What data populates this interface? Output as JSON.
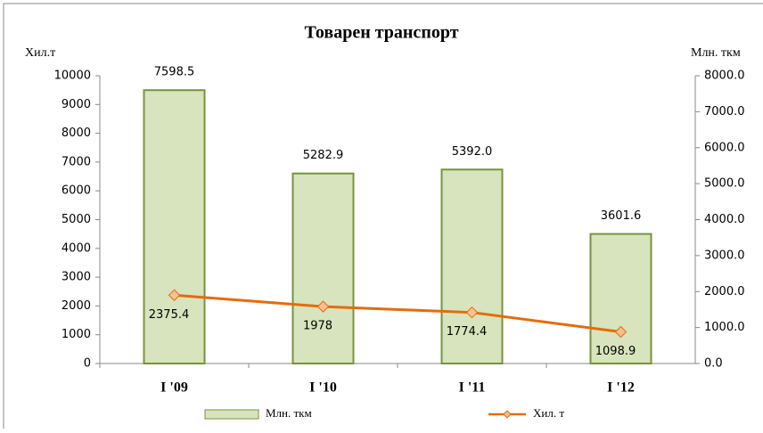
{
  "chart_data": {
    "type": "bar",
    "title": "Товарен транспорт",
    "ylabel": "Хил.т",
    "y2label": "Млн. ткм",
    "categories": [
      "I '09",
      "I '10",
      "I '11",
      "I '12"
    ],
    "series": [
      {
        "name": "Млн. ткм",
        "type": "bar",
        "axis": "y2",
        "color": "#d7e4bd",
        "edgecolor": "#77933c",
        "values": [
          7598.5,
          5282.9,
          5392.0,
          3601.6
        ],
        "value_labels": [
          "7598.5",
          "5282.9",
          "5392.0",
          "3601.6"
        ]
      },
      {
        "name": "Хил. т",
        "type": "line",
        "color": "#e46c0a",
        "markercolor": "#fac090",
        "values": [
          2375.4,
          1978,
          1774.4,
          1098.9
        ]
      }
    ],
    "ylim": [
      0,
      10000
    ],
    "yticks": [
      0,
      1000,
      2000,
      3000,
      4000,
      5000,
      6000,
      7000,
      8000,
      9000,
      10000
    ],
    "y2lim": [
      0,
      8000
    ],
    "y2ticks": [
      {
        "value": 0,
        "label": "0.0"
      },
      {
        "value": 1000,
        "label": "1000.0"
      },
      {
        "value": 2000,
        "label": "2000.0"
      },
      {
        "value": 3000,
        "label": "3000.0"
      },
      {
        "value": 4000,
        "label": "4000.0"
      },
      {
        "value": 5000,
        "label": "5000.0"
      },
      {
        "value": 6000,
        "label": "6000.0"
      },
      {
        "value": 7000,
        "label": "7000.0"
      },
      {
        "value": 8000,
        "label": "8000.0"
      }
    ]
  }
}
